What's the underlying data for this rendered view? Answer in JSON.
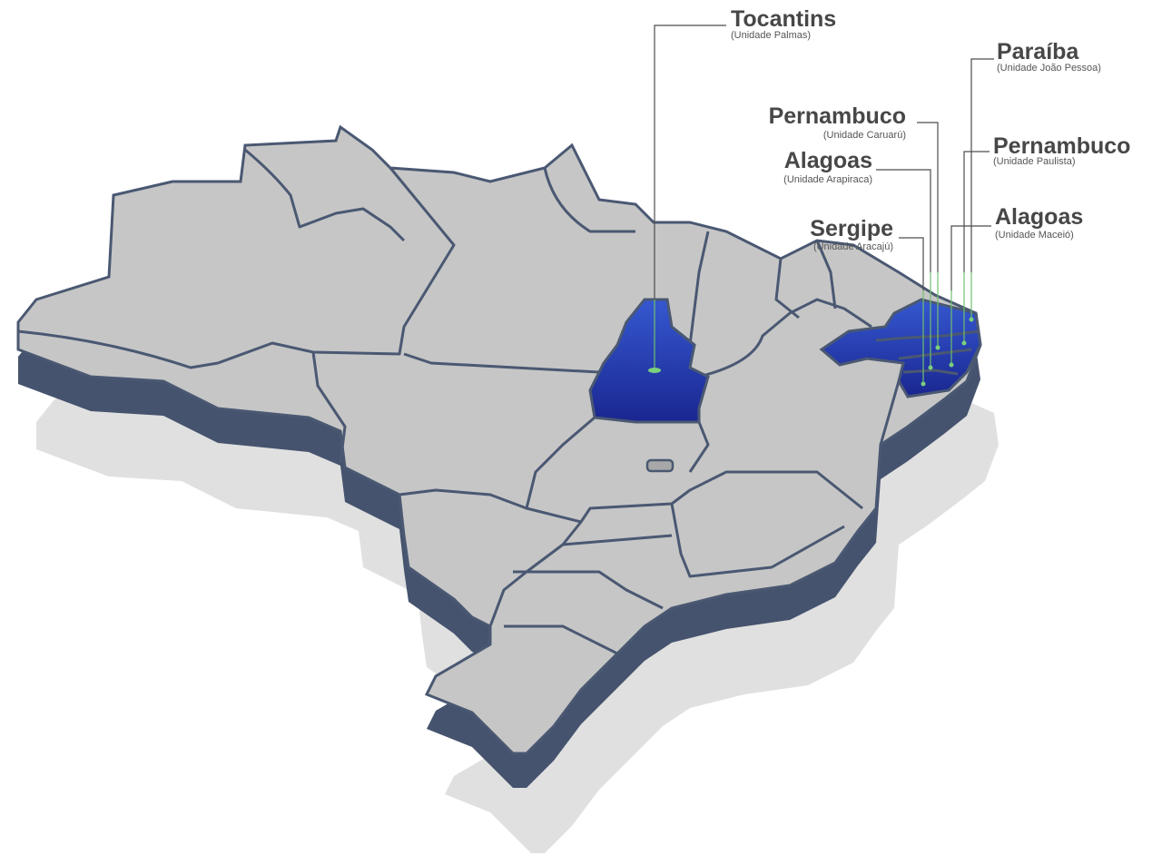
{
  "locations": [
    {
      "state": "Tocantins",
      "unit": "(Unidade Palmas)"
    },
    {
      "state": "Paraíba",
      "unit": "(Unidade João Pessoa)"
    },
    {
      "state": "Pernambuco",
      "unit": "(Unidade Caruarú)"
    },
    {
      "state": "Alagoas",
      "unit": "(Unidade Arapiraca)"
    },
    {
      "state": "Pernambuco",
      "unit": "(Unidade Paulista)"
    },
    {
      "state": "Sergipe",
      "unit": "(Unidade Aracajú)"
    },
    {
      "state": "Alagoas",
      "unit": "(Unidade Maceió)"
    }
  ]
}
